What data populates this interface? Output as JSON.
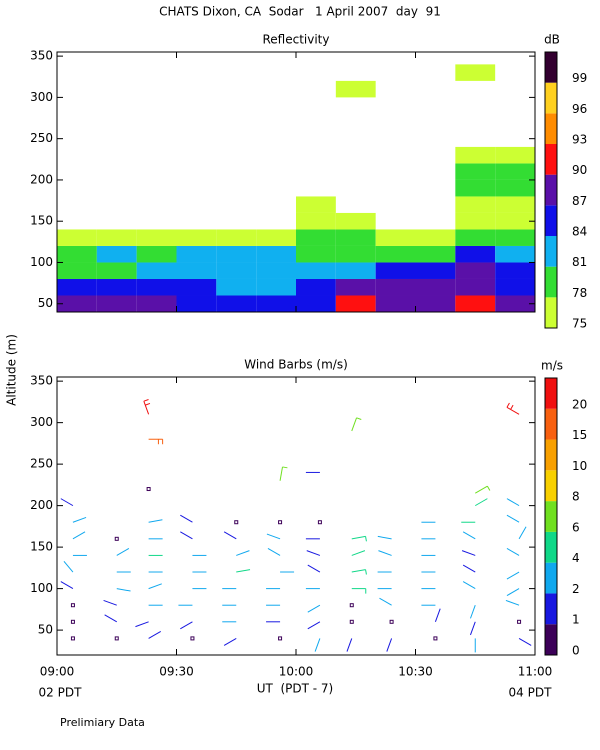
{
  "title": "CHATS Dixon, CA  Sodar   1 April 2007  day  91",
  "ylabel": "Altitude (m)",
  "xlabel": "UT  (PDT - 7)",
  "x_left_note": "02 PDT",
  "x_right_note": "04 PDT",
  "footer": "Prelimiary Data",
  "chart_data": [
    {
      "type": "heatmap",
      "title": "Reflectivity",
      "xlim": [
        0,
        120
      ],
      "ylim": [
        40,
        355
      ],
      "yticks": [
        50,
        100,
        150,
        200,
        250,
        300,
        350
      ],
      "x_edges": [
        0,
        10,
        20,
        30,
        40,
        50,
        60,
        70,
        80,
        90,
        100,
        110,
        120
      ],
      "alt_edges": [
        40,
        60,
        80,
        100,
        120,
        140,
        160,
        180,
        200,
        220,
        240,
        260,
        280,
        300,
        320,
        340
      ],
      "values": [
        [
          87,
          85,
          79,
          80,
          76,
          null,
          null,
          null,
          null,
          null,
          null,
          null,
          null,
          null,
          null
        ],
        [
          88,
          85,
          79,
          82,
          77,
          null,
          null,
          null,
          null,
          null,
          null,
          null,
          null,
          null,
          null
        ],
        [
          88,
          85,
          82,
          80,
          77,
          null,
          null,
          null,
          null,
          null,
          null,
          null,
          null,
          null,
          null
        ],
        [
          86,
          85,
          82,
          81,
          77,
          null,
          null,
          null,
          null,
          null,
          null,
          null,
          null,
          null,
          null
        ],
        [
          85,
          83,
          83,
          82,
          77,
          null,
          null,
          null,
          null,
          null,
          null,
          null,
          null,
          null,
          null
        ],
        [
          85,
          83,
          83,
          82,
          77,
          null,
          null,
          null,
          null,
          null,
          null,
          null,
          null,
          null,
          null
        ],
        [
          86,
          84,
          82,
          80,
          79,
          77,
          76,
          null,
          null,
          null,
          null,
          null,
          null,
          null,
          null
        ],
        [
          91,
          88,
          82,
          80,
          79,
          76,
          null,
          null,
          null,
          null,
          null,
          null,
          null,
          76,
          null
        ],
        [
          88,
          87,
          86,
          79,
          76,
          null,
          null,
          null,
          null,
          null,
          null,
          null,
          null,
          null,
          null
        ],
        [
          89,
          88,
          86,
          80,
          77,
          null,
          null,
          null,
          null,
          null,
          null,
          null,
          null,
          null,
          null
        ],
        [
          91,
          89,
          88,
          84,
          80,
          77,
          76,
          78,
          80,
          76,
          null,
          null,
          null,
          null,
          76
        ],
        [
          88,
          86,
          84,
          81,
          79,
          77,
          76,
          78,
          78,
          76,
          null,
          null,
          null,
          null,
          null
        ]
      ],
      "colorbar": {
        "unit": "dB",
        "levels": [
          75,
          78,
          81,
          84,
          87,
          90,
          93,
          96,
          99
        ],
        "colors": [
          "#ccff33",
          "#33dd33",
          "#10b0f0",
          "#1010e8",
          "#5a10a8",
          "#ff1010",
          "#ff8c00",
          "#ffd020",
          "#330030"
        ]
      }
    },
    {
      "type": "barbs",
      "title": "Wind Barbs (m/s)",
      "xlim": [
        0,
        120
      ],
      "ylim": [
        20,
        355
      ],
      "yticks": [
        50,
        100,
        150,
        200,
        250,
        300,
        350
      ],
      "xticks": [
        {
          "value": 0,
          "label": "09:00"
        },
        {
          "value": 30,
          "label": "09:30"
        },
        {
          "value": 60,
          "label": "10:00"
        },
        {
          "value": 90,
          "label": "10:30"
        },
        {
          "value": 120,
          "label": "11:00"
        }
      ],
      "x": [
        4,
        15,
        23,
        34,
        45,
        56,
        66,
        74,
        84,
        95,
        105,
        116
      ],
      "altitudes": [
        40,
        60,
        80,
        100,
        120,
        140,
        160,
        180,
        200
      ],
      "speed": [
        [
          0,
          0,
          0,
          1,
          3,
          3,
          2,
          2,
          1
        ],
        [
          0,
          1,
          1,
          3,
          3,
          2,
          0,
          null,
          null
        ],
        [
          1,
          1,
          3,
          3,
          3,
          4,
          3,
          3,
          null
        ],
        [
          0,
          1,
          2,
          2,
          3,
          3,
          1,
          1,
          null
        ],
        [
          1,
          2,
          2,
          3,
          4,
          3,
          1,
          0,
          null
        ],
        [
          0,
          1,
          2,
          2,
          3,
          2,
          2,
          0,
          null
        ],
        [
          2,
          1,
          2,
          2,
          1,
          1,
          1,
          0,
          null
        ],
        [
          1,
          0,
          0,
          5,
          5,
          4,
          5,
          null,
          null
        ],
        [
          1,
          0,
          2,
          3,
          3,
          3,
          3,
          null,
          null
        ],
        [
          0,
          1,
          2,
          2,
          2,
          2,
          2,
          2,
          null
        ],
        [
          2,
          1,
          3,
          2,
          1,
          1,
          3,
          4,
          4
        ],
        [
          1,
          0,
          2,
          2,
          2,
          3,
          3,
          2,
          2
        ]
      ],
      "direction": [
        [
          0,
          0,
          0,
          300,
          320,
          90,
          60,
          70,
          300
        ],
        [
          0,
          300,
          290,
          100,
          90,
          60,
          0,
          null,
          null
        ],
        [
          60,
          250,
          90,
          70,
          90,
          90,
          90,
          80,
          null
        ],
        [
          0,
          240,
          270,
          90,
          90,
          90,
          300,
          300,
          null
        ],
        [
          240,
          270,
          270,
          270,
          80,
          70,
          300,
          0,
          null
        ],
        [
          0,
          270,
          270,
          270,
          90,
          300,
          290,
          0,
          null
        ],
        [
          200,
          240,
          240,
          270,
          300,
          290,
          270,
          0,
          null
        ],
        [
          200,
          0,
          0,
          90,
          80,
          70,
          80,
          null,
          null
        ],
        [
          200,
          0,
          300,
          270,
          270,
          290,
          280,
          null,
          null
        ],
        [
          0,
          20,
          270,
          270,
          270,
          270,
          270,
          270,
          null
        ],
        [
          180,
          200,
          200,
          300,
          300,
          290,
          300,
          270,
          60
        ],
        [
          120,
          0,
          290,
          240,
          240,
          300,
          30,
          300,
          300
        ]
      ],
      "upper": {
        "x": [
          23,
          23,
          23,
          56,
          66,
          74,
          105,
          116
        ],
        "altitudes": [
          220,
          280,
          310,
          230,
          240,
          290,
          215,
          310
        ],
        "speed": [
          0,
          17,
          22,
          7,
          1,
          7,
          7,
          22
        ],
        "direction": [
          0,
          90,
          340,
          10,
          270,
          20,
          60,
          300
        ]
      },
      "colorbar": {
        "unit": "m/s",
        "levels": [
          0,
          1,
          2,
          4,
          6,
          8,
          10,
          15,
          20
        ],
        "colors": [
          "#3c0058",
          "#1818e0",
          "#10a8ee",
          "#10d888",
          "#70e020",
          "#f8d000",
          "#f8a000",
          "#f86010",
          "#f01010"
        ]
      }
    }
  ]
}
